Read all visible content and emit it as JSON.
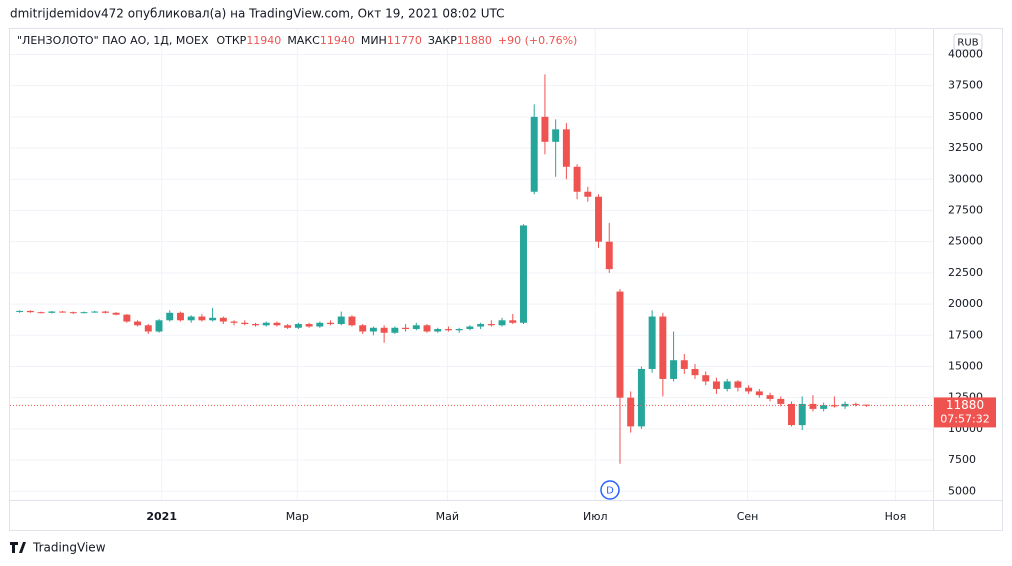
{
  "header": "dmitrijdemidov472 опубликовал(а) на TradingView.com, Окт 19, 2021 08:02 UTC",
  "footer": "TradingView",
  "chart_data": {
    "type": "candlestick",
    "title": "\"ЛЕНЗОЛОТО\" ПАО АО, 1Д, MOEX",
    "legend_labels": {
      "open": "ОТКР",
      "high": "МАКС",
      "low": "МИН",
      "close": "ЗАКР"
    },
    "change": "+90 (+0.76%)",
    "currency": "RUB",
    "countdown": "07:57:32",
    "event_marker": "D",
    "up_color": "#26a69a",
    "down_color": "#ef5350",
    "ylim": [
      4300,
      41800
    ],
    "yticks": [
      5000,
      7500,
      10000,
      12500,
      15000,
      17500,
      20000,
      22500,
      25000,
      27500,
      30000,
      32500,
      35000,
      37500,
      40000
    ],
    "xlim": [
      -0.9,
      85.2
    ],
    "xticks": [
      {
        "value": 13.25,
        "label": "2021"
      },
      {
        "value": 25.9,
        "label": "Мар"
      },
      {
        "value": 39.9,
        "label": "Май"
      },
      {
        "value": 53.7,
        "label": "Июл"
      },
      {
        "value": 67.9,
        "label": "Сен"
      },
      {
        "value": 81.7,
        "label": "Ноя"
      }
    ],
    "grid": true,
    "ohlc": [
      [
        19400,
        19500,
        19300,
        19450
      ],
      [
        19450,
        19500,
        19300,
        19350
      ],
      [
        19350,
        19400,
        19250,
        19300
      ],
      [
        19300,
        19450,
        19250,
        19400
      ],
      [
        19400,
        19450,
        19300,
        19350
      ],
      [
        19350,
        19400,
        19200,
        19300
      ],
      [
        19300,
        19400,
        19250,
        19350
      ],
      [
        19350,
        19450,
        19300,
        19400
      ],
      [
        19400,
        19450,
        19250,
        19300
      ],
      [
        19300,
        19350,
        19100,
        19150
      ],
      [
        19150,
        19200,
        18500,
        18600
      ],
      [
        18600,
        18700,
        18200,
        18300
      ],
      [
        18300,
        18400,
        17600,
        17800
      ],
      [
        17800,
        18800,
        17700,
        18700
      ],
      [
        18700,
        19500,
        18600,
        19300
      ],
      [
        19300,
        19400,
        18600,
        18700
      ],
      [
        18700,
        19100,
        18500,
        19000
      ],
      [
        19000,
        19200,
        18600,
        18700
      ],
      [
        18700,
        19700,
        18600,
        18900
      ],
      [
        18900,
        19000,
        18400,
        18600
      ],
      [
        18600,
        18700,
        18300,
        18500
      ],
      [
        18500,
        18700,
        18300,
        18400
      ],
      [
        18400,
        18500,
        18200,
        18300
      ],
      [
        18300,
        18600,
        18200,
        18500
      ],
      [
        18500,
        18600,
        18200,
        18300
      ],
      [
        18300,
        18400,
        18000,
        18100
      ],
      [
        18100,
        18500,
        18000,
        18400
      ],
      [
        18400,
        18500,
        18100,
        18200
      ],
      [
        18200,
        18600,
        18100,
        18500
      ],
      [
        18500,
        18700,
        18300,
        18400
      ],
      [
        18400,
        19400,
        18300,
        19000
      ],
      [
        19000,
        19100,
        18200,
        18300
      ],
      [
        18300,
        18400,
        17600,
        17800
      ],
      [
        17800,
        18200,
        17500,
        18100
      ],
      [
        18100,
        18300,
        16900,
        17700
      ],
      [
        17700,
        18200,
        17600,
        18100
      ],
      [
        18100,
        18400,
        17800,
        18000
      ],
      [
        18000,
        18500,
        17900,
        18300
      ],
      [
        18300,
        18400,
        17700,
        17800
      ],
      [
        17800,
        18100,
        17700,
        18000
      ],
      [
        18000,
        18200,
        17800,
        17900
      ],
      [
        17900,
        18100,
        17700,
        18000
      ],
      [
        18000,
        18300,
        17900,
        18200
      ],
      [
        18200,
        18500,
        18000,
        18400
      ],
      [
        18400,
        18700,
        18200,
        18300
      ],
      [
        18300,
        18900,
        18200,
        18700
      ],
      [
        18700,
        19200,
        18400,
        18500
      ],
      [
        18500,
        26400,
        18400,
        26300
      ],
      [
        29000,
        36000,
        28800,
        35000
      ],
      [
        35000,
        38400,
        32000,
        33000
      ],
      [
        33000,
        34800,
        30200,
        34000
      ],
      [
        34000,
        34500,
        30000,
        31000
      ],
      [
        31000,
        31200,
        28400,
        29000
      ],
      [
        29000,
        29400,
        28200,
        28600
      ],
      [
        28600,
        28800,
        24500,
        25000
      ],
      [
        25000,
        26500,
        22500,
        22800
      ],
      [
        21000,
        21200,
        7200,
        12500
      ],
      [
        12500,
        13000,
        9700,
        10200
      ],
      [
        10200,
        15000,
        10000,
        14800
      ],
      [
        14800,
        19500,
        14500,
        19000
      ],
      [
        19000,
        19300,
        12600,
        14000
      ],
      [
        14000,
        17800,
        13800,
        15500
      ],
      [
        15500,
        16000,
        14400,
        14800
      ],
      [
        14800,
        15200,
        14000,
        14300
      ],
      [
        14300,
        14600,
        13500,
        13800
      ],
      [
        13800,
        14100,
        12800,
        13200
      ],
      [
        13200,
        14000,
        13000,
        13800
      ],
      [
        13800,
        13900,
        13000,
        13300
      ],
      [
        13300,
        13500,
        12800,
        13000
      ],
      [
        13000,
        13200,
        12500,
        12700
      ],
      [
        12700,
        12900,
        12200,
        12400
      ],
      [
        12400,
        12600,
        11800,
        12000
      ],
      [
        12000,
        12200,
        10200,
        10300
      ],
      [
        10300,
        12600,
        9900,
        12000
      ],
      [
        12000,
        12700,
        11400,
        11600
      ],
      [
        11600,
        12100,
        11400,
        11900
      ],
      [
        11900,
        12600,
        11700,
        11800
      ],
      [
        11800,
        12200,
        11600,
        12000
      ],
      [
        12000,
        12100,
        11800,
        11950
      ],
      [
        11940,
        11940,
        11770,
        11880
      ]
    ]
  }
}
